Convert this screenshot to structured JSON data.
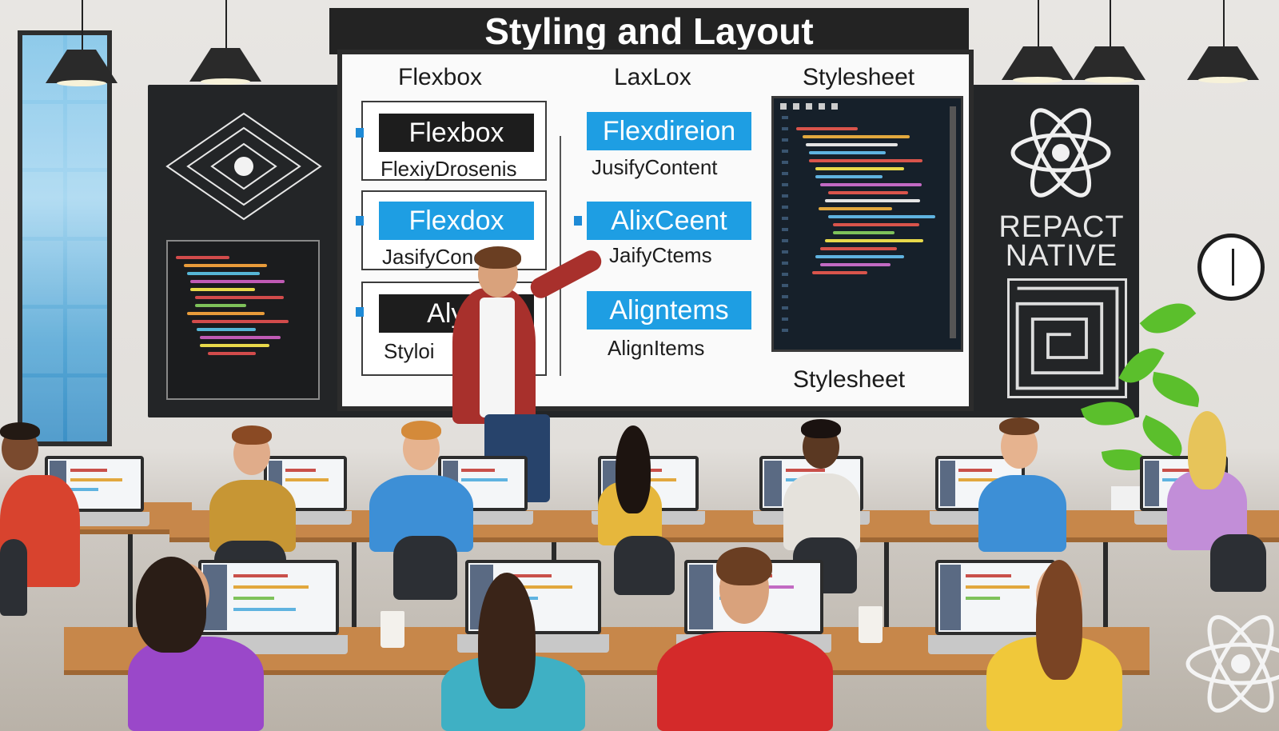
{
  "board": {
    "title": "Styling and Layout",
    "columns": [
      {
        "heading": "Flexbox"
      },
      {
        "heading": "LaxLox"
      },
      {
        "heading": "Stylesheet"
      }
    ],
    "left_items": [
      {
        "pill": "Flexbox",
        "sub": "FlexiyDrosenis"
      },
      {
        "pill": "Flexdox",
        "sub": "JasifyConent"
      },
      {
        "pill": "Alyle",
        "sub": "Styloi"
      }
    ],
    "middle_items": [
      {
        "pill": "Flexdireion",
        "sub": "JusifyContent"
      },
      {
        "pill": "AlixCeent",
        "sub": "JaifyCtems"
      },
      {
        "pill": "Aligntems",
        "sub": "AlignItems"
      }
    ],
    "footer": "Stylesheet"
  },
  "wall": {
    "react_text_line1": "REPACT",
    "react_text_line2": "NATIVE"
  },
  "colors": {
    "board_blue": "#1e9ee3",
    "board_dark": "#1d1d1d",
    "chalkboard": "#232527",
    "desk_wood": "#c7874a"
  },
  "icons": [
    "react-atom-icon",
    "maze-icon",
    "clock-icon",
    "chalk-diamond-icon"
  ]
}
